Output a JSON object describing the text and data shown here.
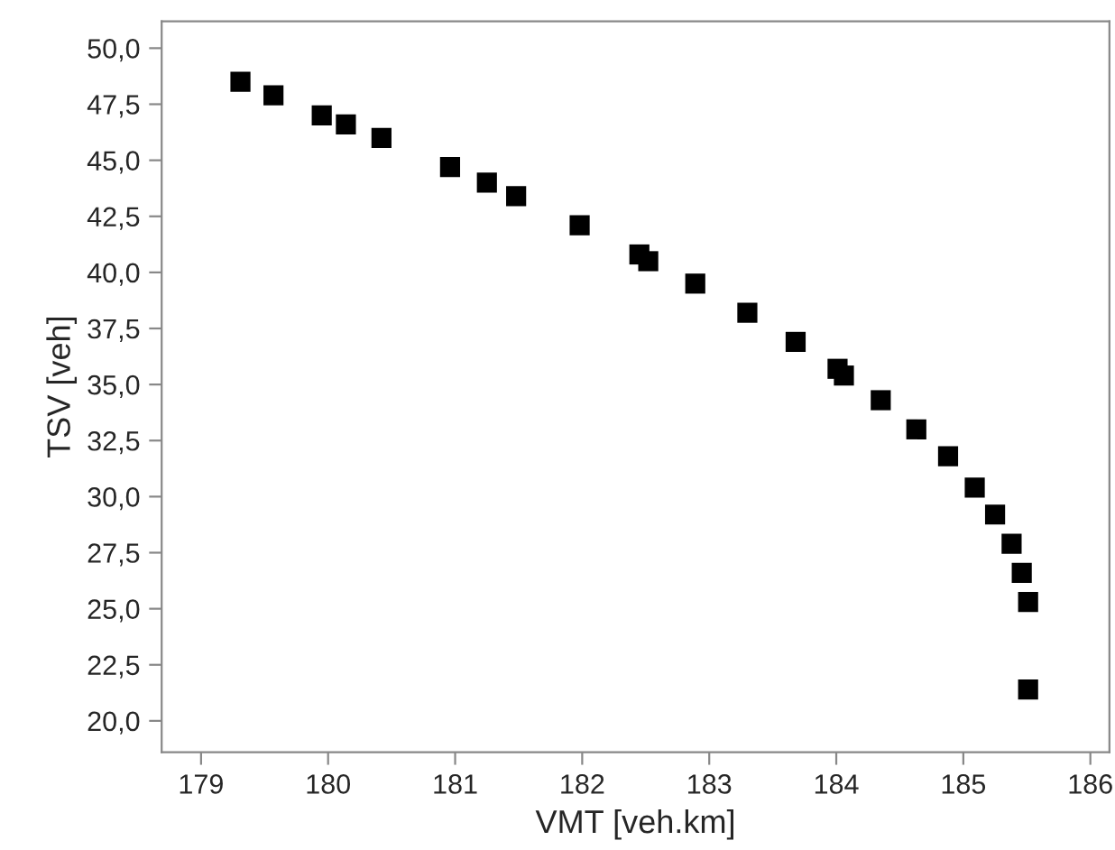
{
  "chart_data": {
    "type": "scatter",
    "xlabel": "VMT [veh.km]",
    "ylabel": "TSV [veh]",
    "x": [
      179.31,
      179.57,
      179.95,
      180.14,
      180.42,
      180.96,
      181.25,
      181.48,
      181.98,
      182.45,
      182.52,
      182.89,
      183.3,
      183.68,
      184.01,
      184.06,
      184.35,
      184.63,
      184.88,
      185.09,
      185.25,
      185.38,
      185.46,
      185.51,
      185.51
    ],
    "series": [
      {
        "color": "#000000",
        "values": [
          48.5,
          47.9,
          47.0,
          46.6,
          46.0,
          44.7,
          44.0,
          43.4,
          42.1,
          40.8,
          40.5,
          39.5,
          38.2,
          36.9,
          35.7,
          35.4,
          34.3,
          33.0,
          31.8,
          30.4,
          29.2,
          27.9,
          26.6,
          25.3,
          21.4
        ]
      }
    ],
    "marker": "square",
    "grid": false,
    "legend": false,
    "xlim": [
      178.69,
      186.15
    ],
    "xticks": [
      179,
      180,
      181,
      182,
      183,
      184,
      185,
      186
    ],
    "ylim": [
      18.6,
      51.2
    ],
    "yticks": [
      {
        "value": 20,
        "label": "20,0"
      },
      {
        "value": 22.5,
        "label": "22,5"
      },
      {
        "value": 25,
        "label": "25,0"
      },
      {
        "value": 27.5,
        "label": "27,5"
      },
      {
        "value": 30,
        "label": "30,0"
      },
      {
        "value": 32.5,
        "label": "32,5"
      },
      {
        "value": 35,
        "label": "35,0"
      },
      {
        "value": 37.5,
        "label": "37,5"
      },
      {
        "value": 40,
        "label": "40,0"
      },
      {
        "value": 42.5,
        "label": "42,5"
      },
      {
        "value": 45,
        "label": "45,0"
      },
      {
        "value": 47.5,
        "label": "47,5"
      },
      {
        "value": 50,
        "label": "50,0"
      }
    ]
  }
}
